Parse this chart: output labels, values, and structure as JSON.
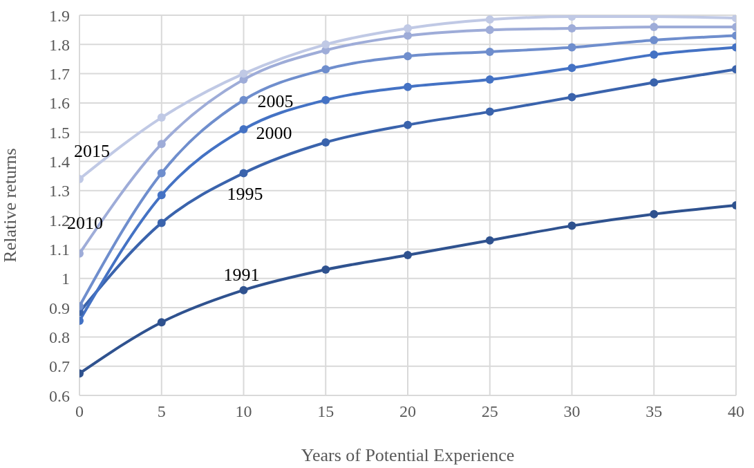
{
  "chart_data": {
    "type": "line",
    "xlabel": "Years of Potential Experience",
    "ylabel": "Relative returns",
    "x": [
      0,
      5,
      10,
      15,
      20,
      25,
      30,
      35,
      40
    ],
    "xlim": [
      0,
      40
    ],
    "xticks": [
      0,
      5,
      10,
      15,
      20,
      25,
      30,
      35,
      40
    ],
    "ylim": [
      0.6,
      1.9
    ],
    "yticks": [
      0.6,
      0.7,
      0.8,
      0.9,
      1,
      1.1,
      1.2,
      1.3,
      1.4,
      1.5,
      1.6,
      1.7,
      1.8,
      1.9
    ],
    "grid": true,
    "legend": false,
    "marker": "circle",
    "line_style": "solid",
    "series": [
      {
        "name": "1991",
        "color": "#2f528f",
        "values": [
          0.675,
          0.85,
          0.96,
          1.03,
          1.08,
          1.13,
          1.18,
          1.22,
          1.25
        ]
      },
      {
        "name": "1995",
        "color": "#3a63ac",
        "values": [
          0.885,
          1.19,
          1.36,
          1.465,
          1.525,
          1.57,
          1.62,
          1.67,
          1.715
        ]
      },
      {
        "name": "2000",
        "color": "#4472c4",
        "values": [
          0.855,
          1.285,
          1.51,
          1.61,
          1.655,
          1.68,
          1.72,
          1.765,
          1.79
        ]
      },
      {
        "name": "2005",
        "color": "#6f8ecd",
        "values": [
          0.905,
          1.36,
          1.61,
          1.715,
          1.76,
          1.775,
          1.79,
          1.815,
          1.83
        ]
      },
      {
        "name": "2010",
        "color": "#9eacd8",
        "values": [
          1.085,
          1.46,
          1.68,
          1.78,
          1.83,
          1.85,
          1.855,
          1.86,
          1.86
        ]
      },
      {
        "name": "2015",
        "color": "#c0c9e5",
        "values": [
          1.34,
          1.55,
          1.7,
          1.8,
          1.855,
          1.885,
          1.895,
          1.895,
          1.89
        ]
      }
    ]
  }
}
